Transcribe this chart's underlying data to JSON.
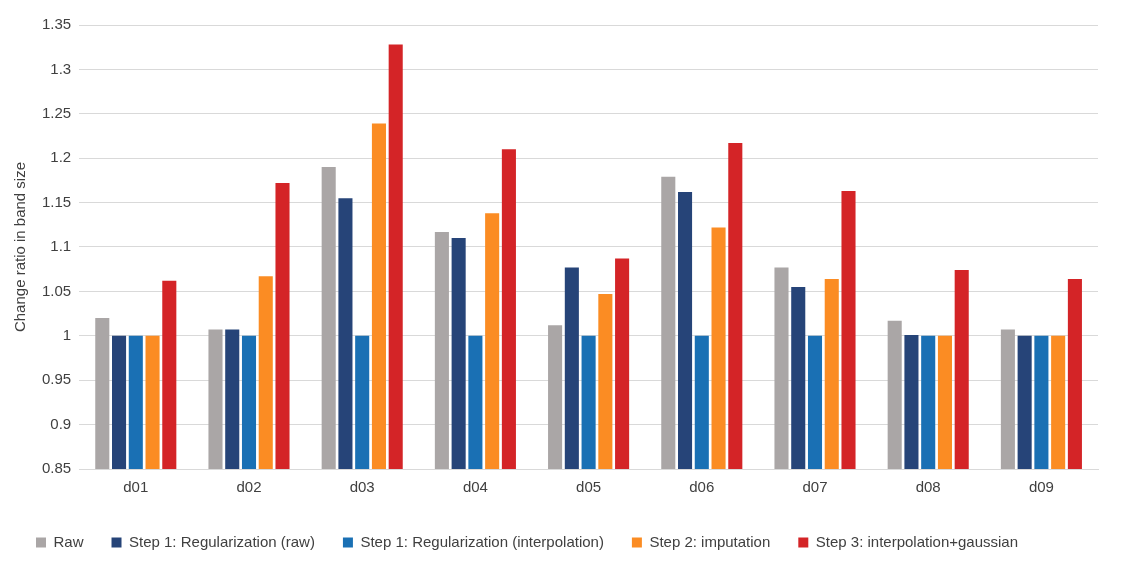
{
  "chart_data": {
    "type": "bar",
    "ylabel": "Change ratio in band size",
    "categories": [
      "d01",
      "d02",
      "d03",
      "d04",
      "d05",
      "d06",
      "d07",
      "d08",
      "d09"
    ],
    "series": [
      {
        "name": "Raw",
        "color": "#aaa6a6",
        "values": [
          1.02,
          1.007,
          1.19,
          1.117,
          1.012,
          1.179,
          1.077,
          1.017,
          1.007
        ]
      },
      {
        "name": "Step 1: Regularization (raw)",
        "color": "#264478",
        "values": [
          1.0,
          1.007,
          1.155,
          1.11,
          1.077,
          1.162,
          1.055,
          1.001,
          1.0
        ]
      },
      {
        "name": "Step 1: Regularization (interpolation)",
        "color": "#1a70b4",
        "values": [
          1.0,
          1.0,
          1.0,
          1.0,
          1.0,
          1.0,
          1.0,
          1.0,
          1.0
        ]
      },
      {
        "name": "Step 2: imputation",
        "color": "#fb8c23",
        "values": [
          1.0,
          1.067,
          1.239,
          1.138,
          1.047,
          1.122,
          1.064,
          1.0,
          1.0
        ]
      },
      {
        "name": "Step 3: interpolation+gaussian",
        "color": "#d42427",
        "values": [
          1.062,
          1.172,
          1.328,
          1.21,
          1.087,
          1.217,
          1.163,
          1.074,
          1.064
        ]
      }
    ],
    "ylim": [
      0.85,
      1.35
    ],
    "yticks": [
      0.85,
      0.9,
      0.95,
      1,
      1.05,
      1.1,
      1.15,
      1.2,
      1.25,
      1.3,
      1.35
    ],
    "grid": "y",
    "legend": "bottom"
  }
}
